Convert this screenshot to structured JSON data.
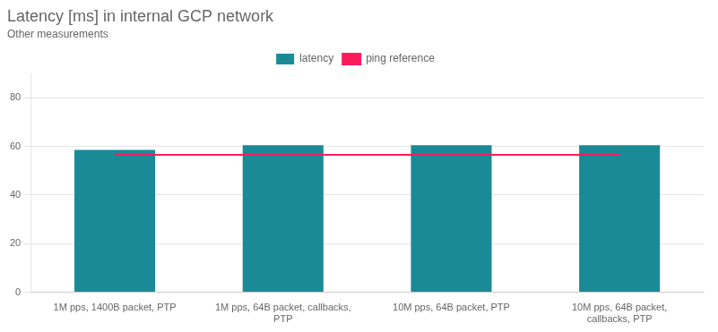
{
  "chart_data": {
    "type": "bar",
    "title": "Latency [ms] in internal GCP network",
    "subtitle": "Other measurements",
    "categories": [
      "1M pps, 1400B packet, PTP",
      "1M pps, 64B packet, callbacks,\nPTP",
      "10M pps, 64B packet, PTP",
      "10M pps, 64B packet,\ncallbacks, PTP"
    ],
    "series": [
      {
        "name": "latency",
        "type": "bar",
        "color": "#1a8a96",
        "values": [
          58.5,
          60.5,
          60.5,
          60.5
        ]
      },
      {
        "name": "ping reference",
        "type": "line",
        "color": "#ff1a5e",
        "values": [
          56.5,
          56.5,
          56.5,
          56.5
        ]
      }
    ],
    "ylim": [
      0,
      90
    ],
    "yticks": [
      0,
      20,
      40,
      60,
      80
    ],
    "grid": true,
    "legend": "top"
  }
}
